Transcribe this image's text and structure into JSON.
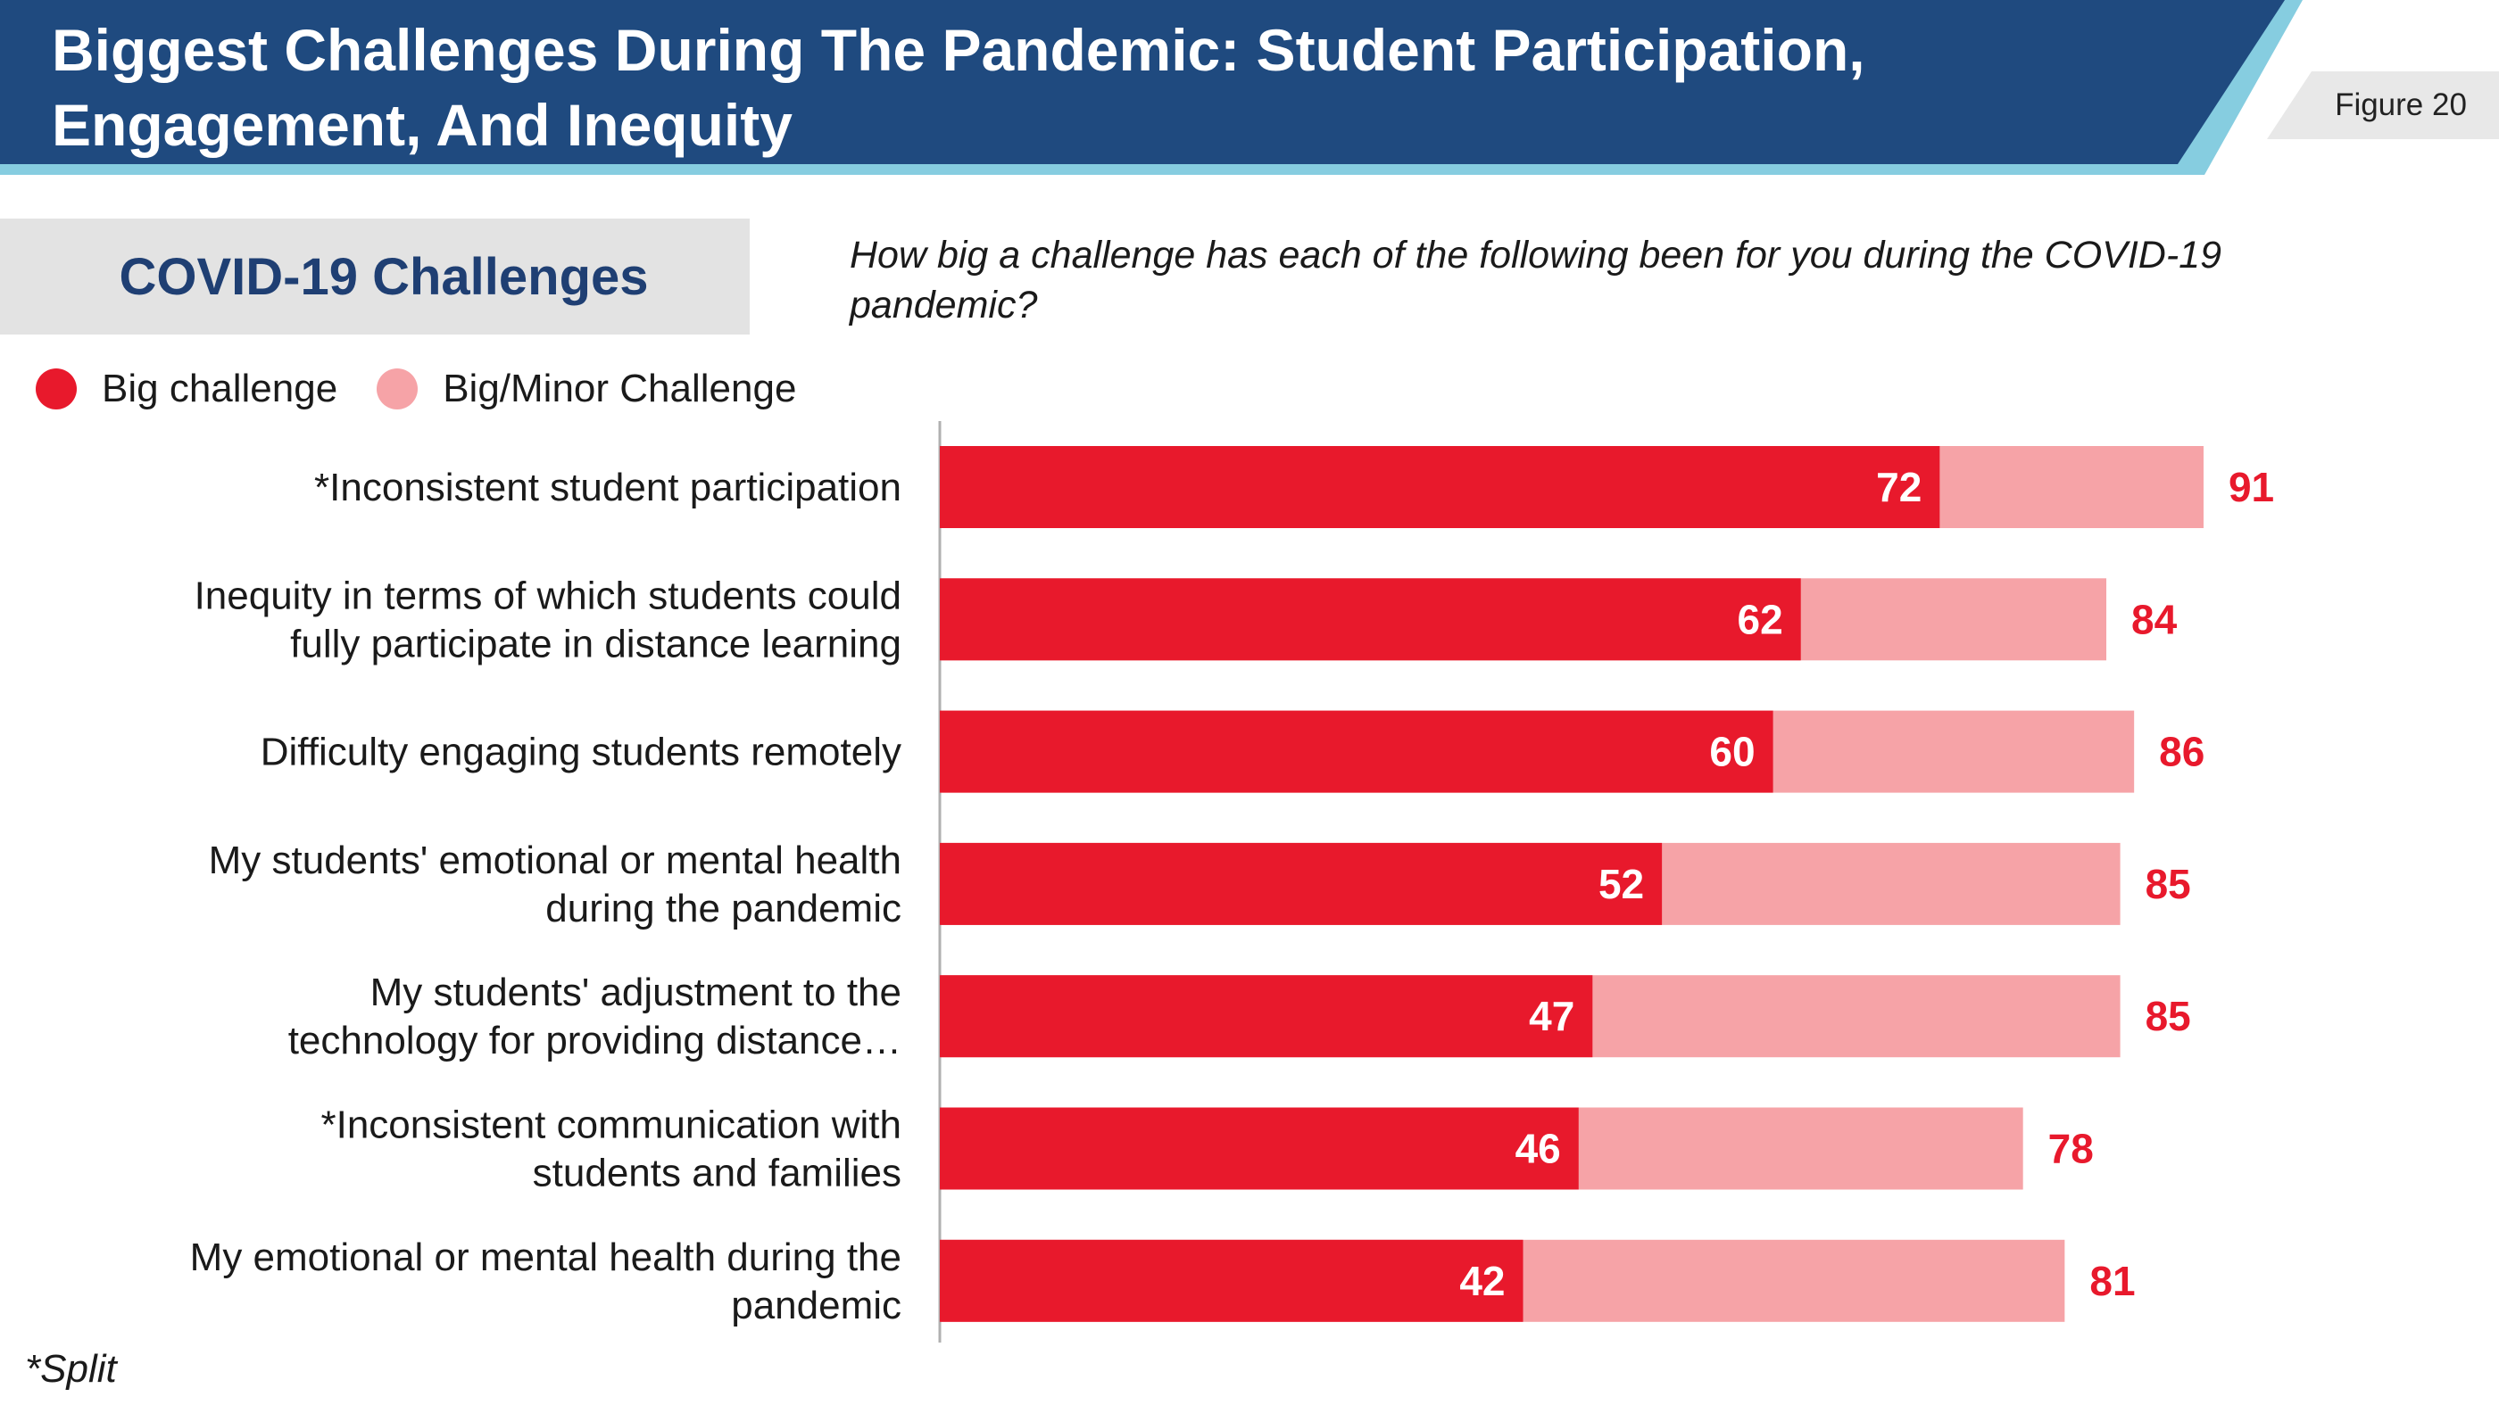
{
  "header": {
    "title_line1": "Biggest Challenges During The Pandemic: Student Participation,",
    "title_line2": "Engagement, And Inequity",
    "figure_label": "Figure 20"
  },
  "section": {
    "title": "COVID-19  Challenges",
    "question": "How big a challenge has each of the following  been for you during the COVID-19 pandemic?"
  },
  "legend": [
    {
      "label": "Big challenge",
      "color": "#e8192c"
    },
    {
      "label": "Big/Minor Challenge",
      "color": "#f6a3a7"
    }
  ],
  "footnote": "*Split",
  "colors": {
    "header_dark": "#1f4a7f",
    "header_accent": "#86cde0",
    "big": "#e8192c",
    "big_minor": "#f6a3a7"
  },
  "chart_data": {
    "type": "bar",
    "orientation": "horizontal",
    "stacked": "overlay",
    "categories": [
      [
        "*Inconsistent student participation"
      ],
      [
        "Inequity in terms of which students could",
        "fully participate in distance learning"
      ],
      [
        "Difficulty engaging students remotely"
      ],
      [
        "My students' emotional or mental health",
        "during the pandemic"
      ],
      [
        "My students' adjustment to the",
        "technology for providing distance…"
      ],
      [
        "*Inconsistent communication with",
        "students and families"
      ],
      [
        "My emotional or mental health during the",
        "pandemic"
      ]
    ],
    "series": [
      {
        "name": "Big challenge",
        "values": [
          72,
          62,
          60,
          52,
          47,
          46,
          42
        ]
      },
      {
        "name": "Big/Minor Challenge",
        "values": [
          91,
          84,
          86,
          85,
          85,
          78,
          81
        ]
      }
    ],
    "xlim": [
      0,
      100
    ],
    "grid": false
  }
}
